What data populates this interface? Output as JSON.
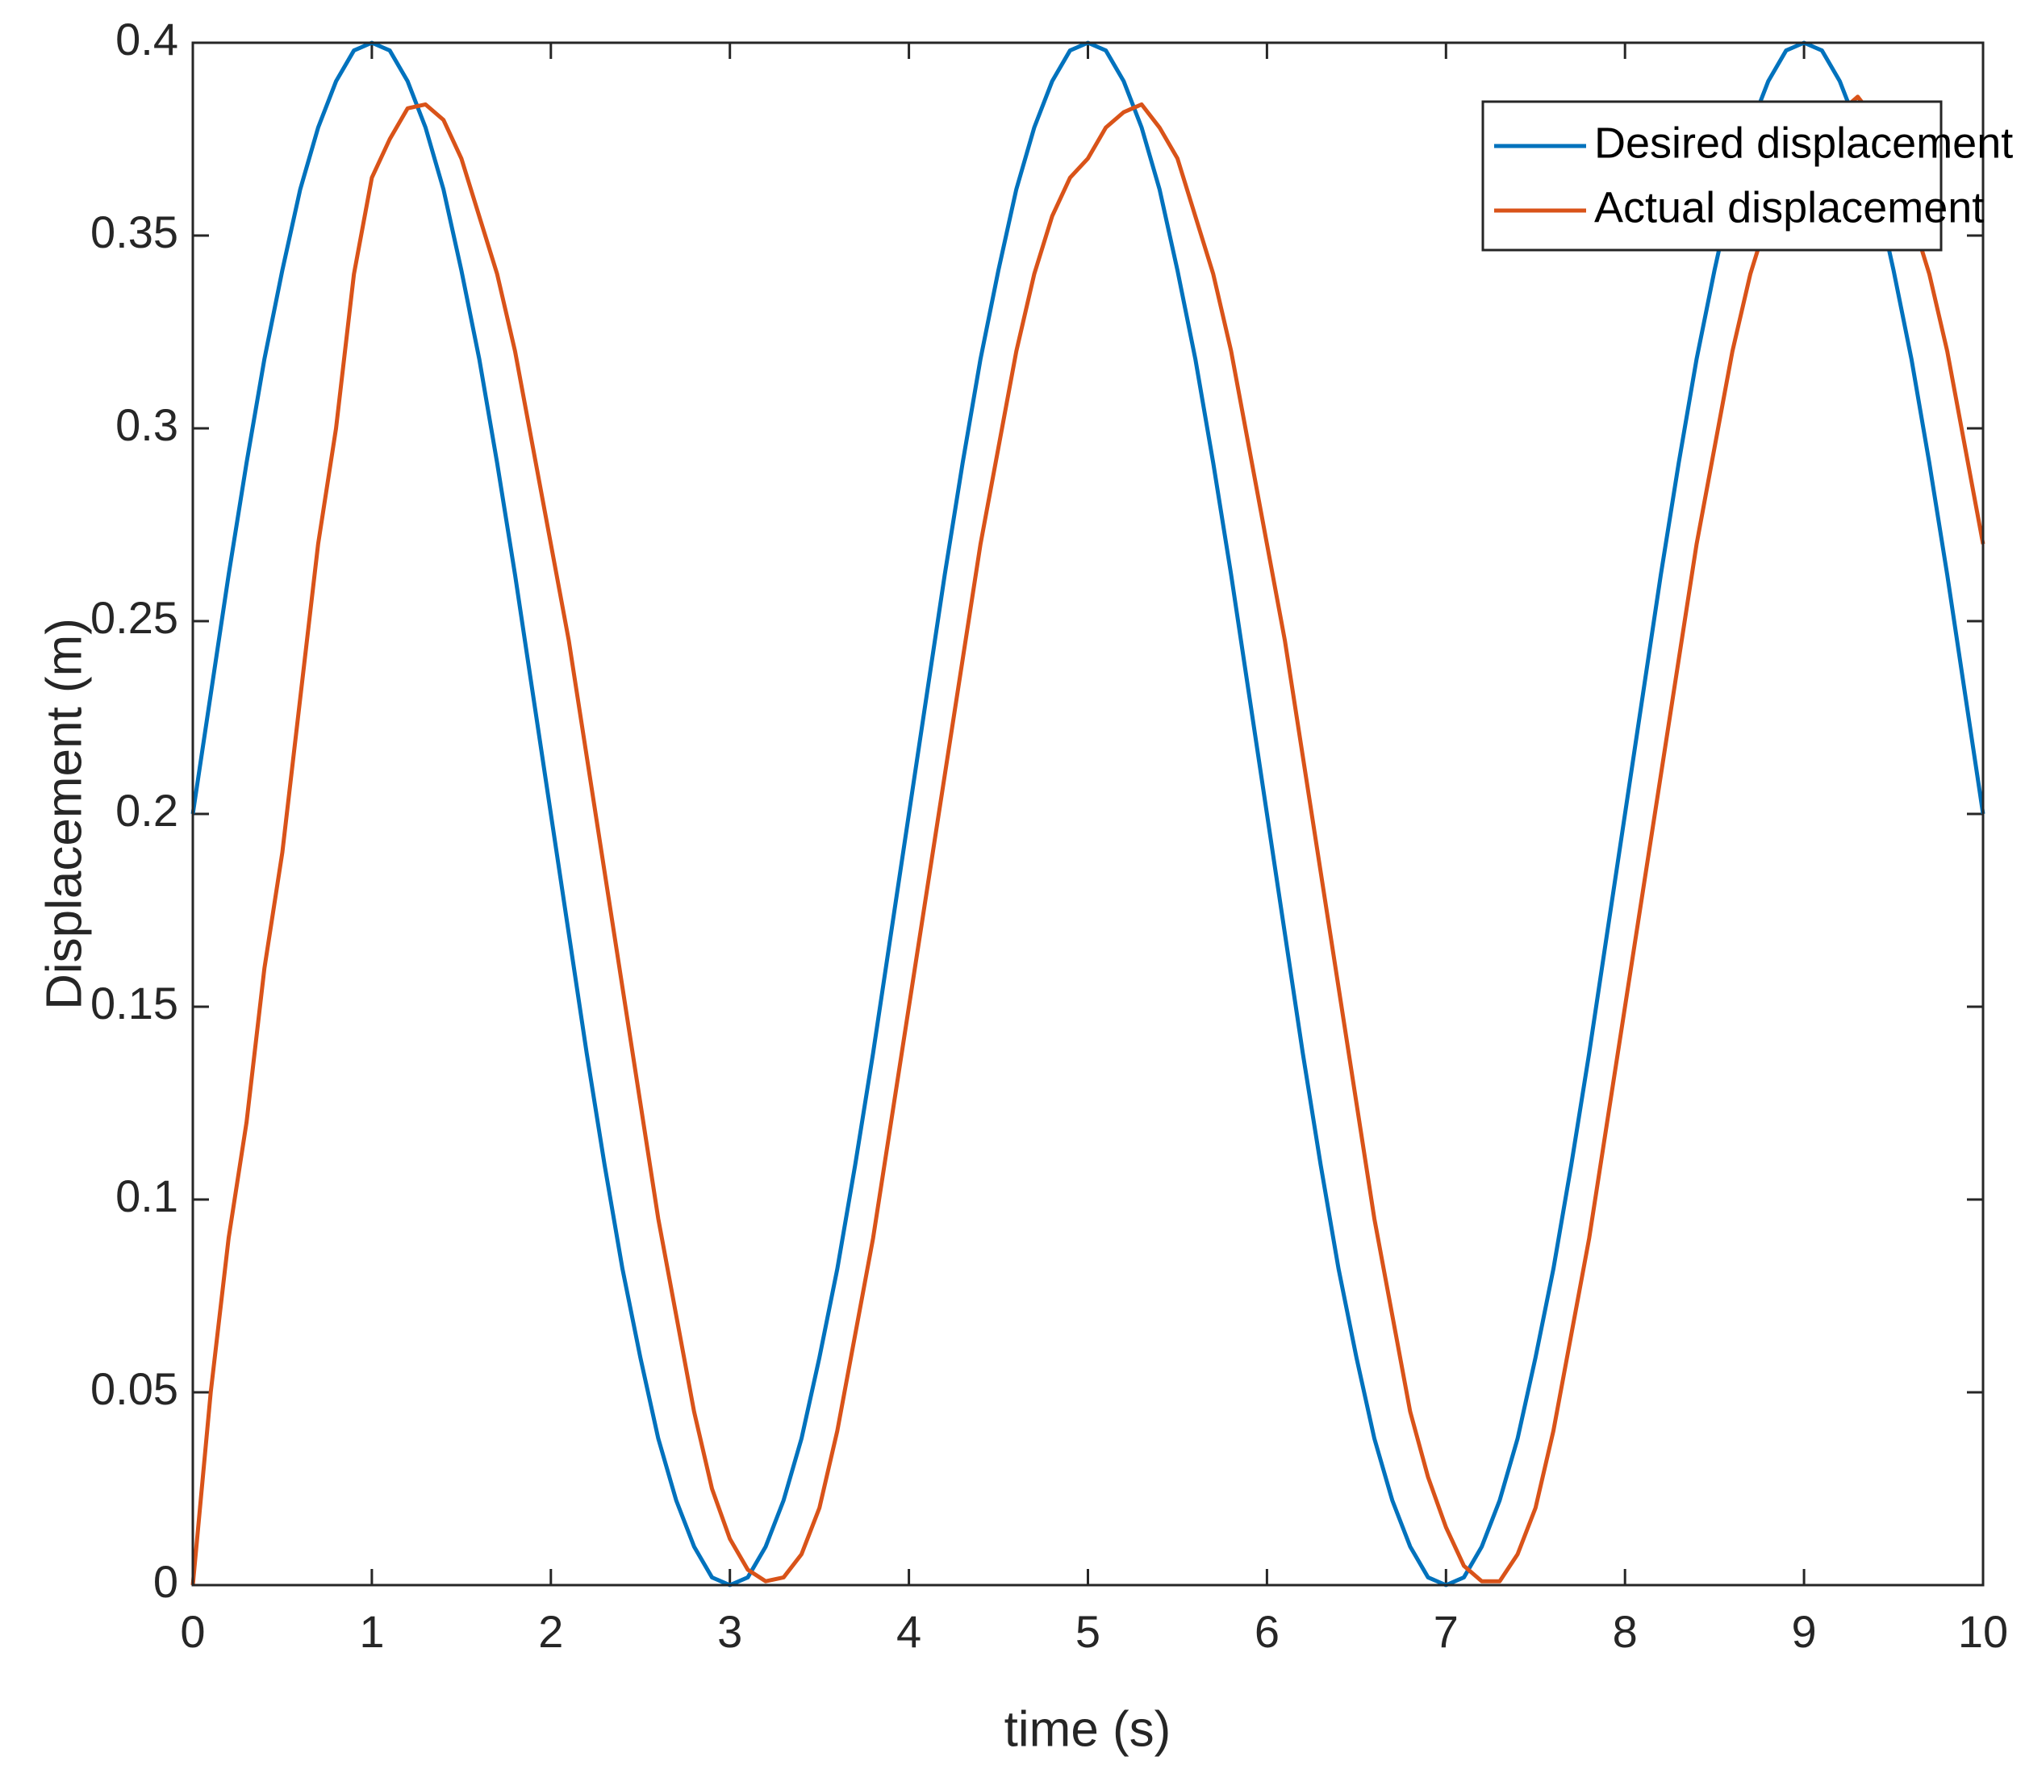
{
  "chart_data": {
    "type": "line",
    "x_label": "time (s)",
    "y_label": "Displacement (m)",
    "x": [
      0,
      0.1,
      0.2,
      0.3,
      0.4,
      0.5,
      0.6,
      0.7,
      0.8,
      0.9,
      1,
      1.1,
      1.2,
      1.3,
      1.4,
      1.5,
      1.6,
      1.7,
      1.8,
      1.9,
      2,
      2.1,
      2.2,
      2.3,
      2.4,
      2.5,
      2.6,
      2.7,
      2.8,
      2.9,
      3,
      3.1,
      3.2,
      3.3,
      3.4,
      3.5,
      3.6,
      3.7,
      3.8,
      3.9,
      4,
      4.1,
      4.2,
      4.3,
      4.4,
      4.5,
      4.6,
      4.7,
      4.8,
      4.9,
      5,
      5.1,
      5.2,
      5.3,
      5.4,
      5.5,
      5.6,
      5.7,
      5.8,
      5.9,
      6,
      6.1,
      6.2,
      6.3,
      6.4,
      6.5,
      6.6,
      6.7,
      6.8,
      6.9,
      7,
      7.1,
      7.2,
      7.3,
      7.4,
      7.5,
      7.6,
      7.7,
      7.8,
      7.9,
      8,
      8.1,
      8.2,
      8.3,
      8.4,
      8.5,
      8.6,
      8.7,
      8.8,
      8.9,
      9,
      9.1,
      9.2,
      9.3,
      9.4,
      9.5,
      9.6,
      9.7,
      9.8,
      9.9,
      10
    ],
    "series": [
      {
        "name": "Desired displacement",
        "color": "#0072bd",
        "values": [
          0.2,
          0.231,
          0.262,
          0.291,
          0.318,
          0.341,
          0.362,
          0.378,
          0.39,
          0.398,
          0.4,
          0.398,
          0.39,
          0.378,
          0.362,
          0.341,
          0.318,
          0.291,
          0.262,
          0.231,
          0.2,
          0.169,
          0.138,
          0.109,
          0.082,
          0.059,
          0.038,
          0.022,
          0.01,
          0.002,
          0,
          0.002,
          0.01,
          0.022,
          0.038,
          0.059,
          0.082,
          0.109,
          0.138,
          0.169,
          0.2,
          0.231,
          0.262,
          0.291,
          0.318,
          0.341,
          0.362,
          0.378,
          0.39,
          0.398,
          0.4,
          0.398,
          0.39,
          0.378,
          0.362,
          0.341,
          0.318,
          0.291,
          0.262,
          0.231,
          0.2,
          0.169,
          0.138,
          0.109,
          0.082,
          0.059,
          0.038,
          0.022,
          0.01,
          0.002,
          0,
          0.002,
          0.01,
          0.022,
          0.038,
          0.059,
          0.082,
          0.109,
          0.138,
          0.169,
          0.2,
          0.231,
          0.262,
          0.291,
          0.318,
          0.341,
          0.362,
          0.378,
          0.39,
          0.398,
          0.4,
          0.398,
          0.39,
          0.378,
          0.362,
          0.341,
          0.318,
          0.291,
          0.262,
          0.231,
          0.2
        ]
      },
      {
        "name": "Actual displacement",
        "color": "#d95319",
        "values": [
          0,
          0.05,
          0.09,
          0.12,
          0.16,
          0.19,
          0.23,
          0.27,
          0.3,
          0.34,
          0.365,
          0.375,
          0.383,
          0.384,
          0.38,
          0.37,
          0.355,
          0.34,
          0.32,
          0.295,
          0.27,
          0.245,
          0.215,
          0.185,
          0.155,
          0.125,
          0.095,
          0.07,
          0.045,
          0.025,
          0.012,
          0.004,
          0.001,
          0.002,
          0.008,
          0.02,
          0.04,
          0.065,
          0.09,
          0.12,
          0.15,
          0.18,
          0.21,
          0.24,
          0.27,
          0.295,
          0.32,
          0.34,
          0.355,
          0.365,
          0.37,
          0.378,
          0.382,
          0.384,
          0.378,
          0.37,
          0.355,
          0.34,
          0.32,
          0.295,
          0.27,
          0.245,
          0.215,
          0.185,
          0.155,
          0.125,
          0.095,
          0.07,
          0.045,
          0.028,
          0.015,
          0.005,
          0.001,
          0.001,
          0.008,
          0.02,
          0.04,
          0.065,
          0.09,
          0.12,
          0.15,
          0.18,
          0.21,
          0.24,
          0.27,
          0.295,
          0.32,
          0.34,
          0.355,
          0.365,
          0.372,
          0.378,
          0.382,
          0.386,
          0.38,
          0.37,
          0.355,
          0.34,
          0.32,
          0.295,
          0.27
        ]
      }
    ],
    "xlim": [
      0,
      10
    ],
    "xticks": [
      0,
      1,
      2,
      3,
      4,
      5,
      6,
      7,
      8,
      9,
      10
    ],
    "ylim": [
      0,
      0.4
    ],
    "yticks": [
      0,
      0.05,
      0.1,
      0.15,
      0.2,
      0.25,
      0.3,
      0.35,
      0.4
    ],
    "grid": false,
    "legend": "upper right"
  }
}
